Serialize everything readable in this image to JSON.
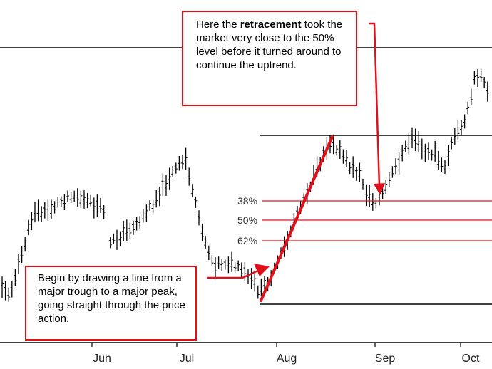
{
  "chart_data": {
    "type": "ohlc",
    "x_axis": {
      "tick_labels": [
        "Jun",
        "Jul",
        "Aug",
        "Sep",
        "Oct"
      ]
    },
    "grid": false,
    "legend": "none",
    "levels": [
      {
        "label": "38%",
        "color": "#e0101a"
      },
      {
        "label": "50%",
        "color": "#e0101a"
      },
      {
        "label": "62%",
        "color": "#e0101a"
      }
    ],
    "annotations": [
      {
        "id": "retracement-note",
        "before": "Here the ",
        "emphasis": "retracement",
        "after": " took the market very close to the 50% level before it turned around to continue the uptrend."
      },
      {
        "id": "trendline-note",
        "text": "Begin by drawing a line from a major trough to a major peak, going straight through the price action."
      }
    ],
    "colors": {
      "bars": "#000000",
      "accent": "#e0101a",
      "background": "#ffffff"
    }
  }
}
